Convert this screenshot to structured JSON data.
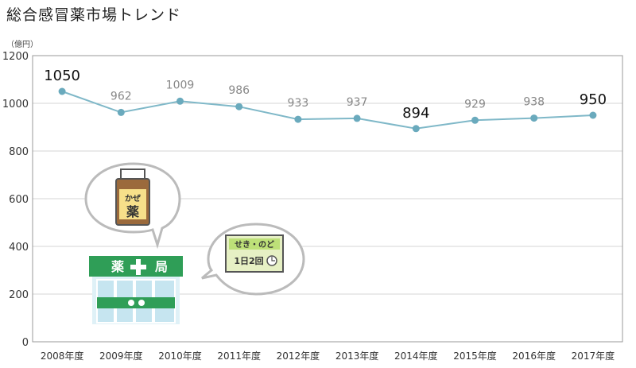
{
  "title": "総合感冒薬市場トレンド",
  "unit": "（億円）",
  "chart_data": {
    "type": "line",
    "title": "総合感冒薬市場トレンド",
    "ylabel": "（億円）",
    "xlabel": "",
    "categories": [
      "2008年度",
      "2009年度",
      "2010年度",
      "2011年度",
      "2012年度",
      "2013年度",
      "2014年度",
      "2015年度",
      "2016年度",
      "2017年度"
    ],
    "series": [
      {
        "values": [
          1050,
          962,
          1009,
          986,
          933,
          937,
          894,
          929,
          938,
          950
        ]
      }
    ],
    "highlighted_labels": [
      "2008年度",
      "2014年度",
      "2017年度"
    ],
    "ylim": [
      0,
      1200
    ],
    "yticks": [
      0,
      200,
      400,
      600,
      800,
      1000,
      1200
    ],
    "grid": "horizontal",
    "line_color": "#7fb8c8",
    "marker_color": "#6aaabd"
  },
  "illustrations": {
    "medicine_bottle_label": "かぜ薬",
    "pharmacy_sign": [
      "薬",
      "局"
    ],
    "lozenge_box_label": "せき・のど",
    "lozenge_box_dose": "1日2回"
  }
}
